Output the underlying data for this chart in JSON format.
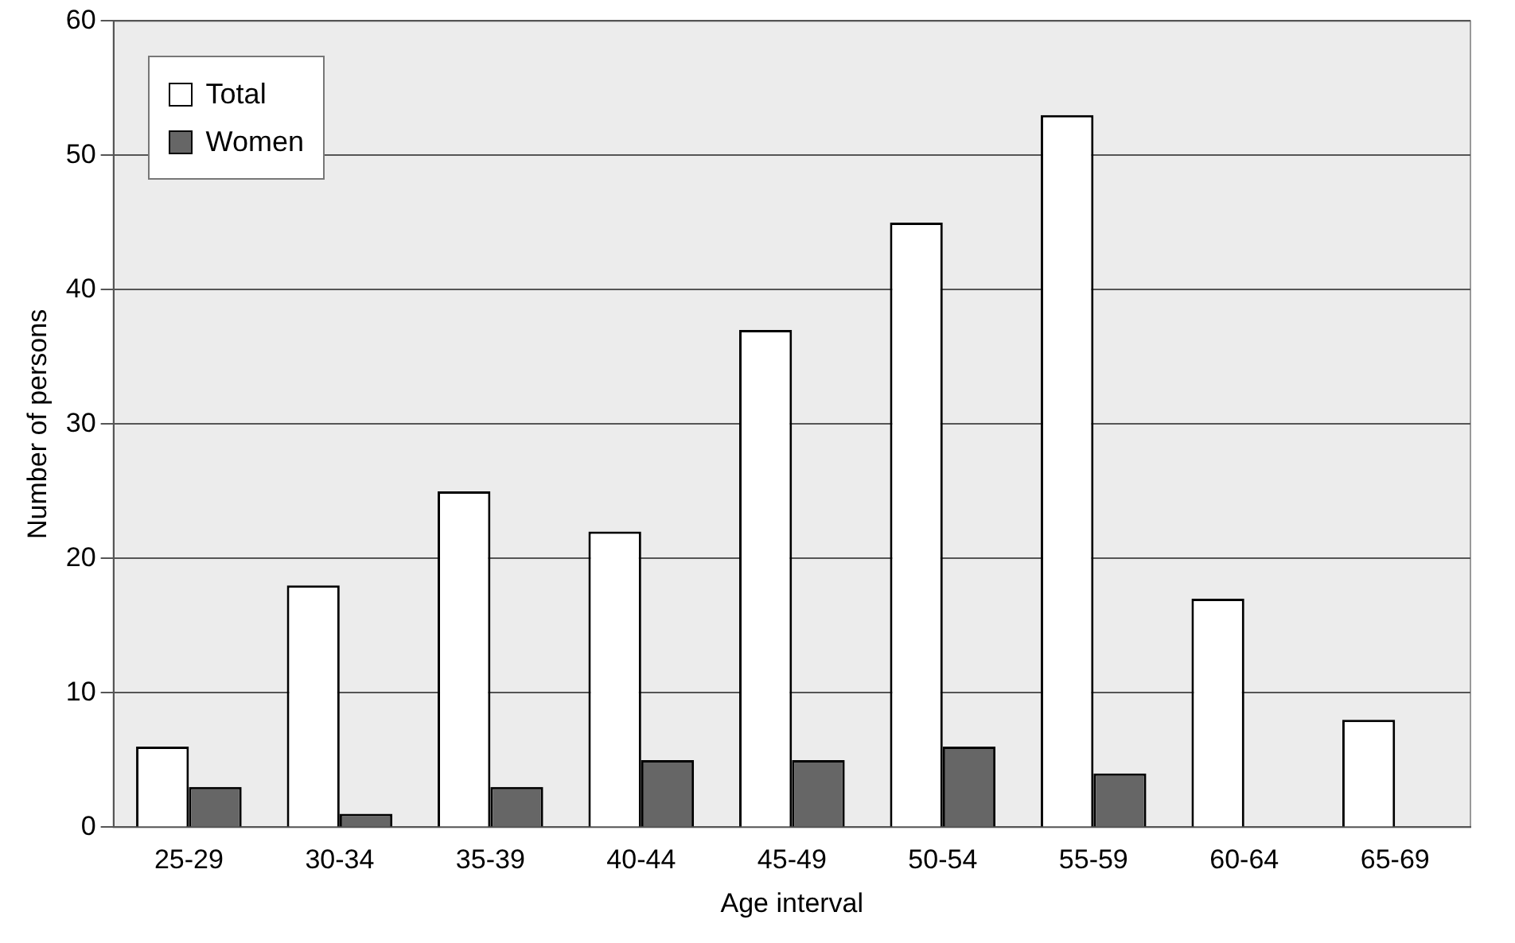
{
  "chart_data": {
    "type": "bar",
    "xlabel": "Age interval",
    "ylabel": "Number of persons",
    "categories": [
      "25-29",
      "30-34",
      "35-39",
      "40-44",
      "45-49",
      "50-54",
      "55-59",
      "60-64",
      "65-69"
    ],
    "series": [
      {
        "name": "Total",
        "color": "#ffffff",
        "values": [
          6,
          18,
          25,
          22,
          37,
          45,
          53,
          17,
          8
        ]
      },
      {
        "name": "Women",
        "color": "#666666",
        "values": [
          3,
          1,
          3,
          5,
          5,
          6,
          4,
          null,
          null
        ]
      }
    ],
    "ylim": [
      0,
      60
    ],
    "yticks": [
      0,
      10,
      20,
      30,
      40,
      50,
      60
    ],
    "grid": "y",
    "legend": "top left"
  }
}
